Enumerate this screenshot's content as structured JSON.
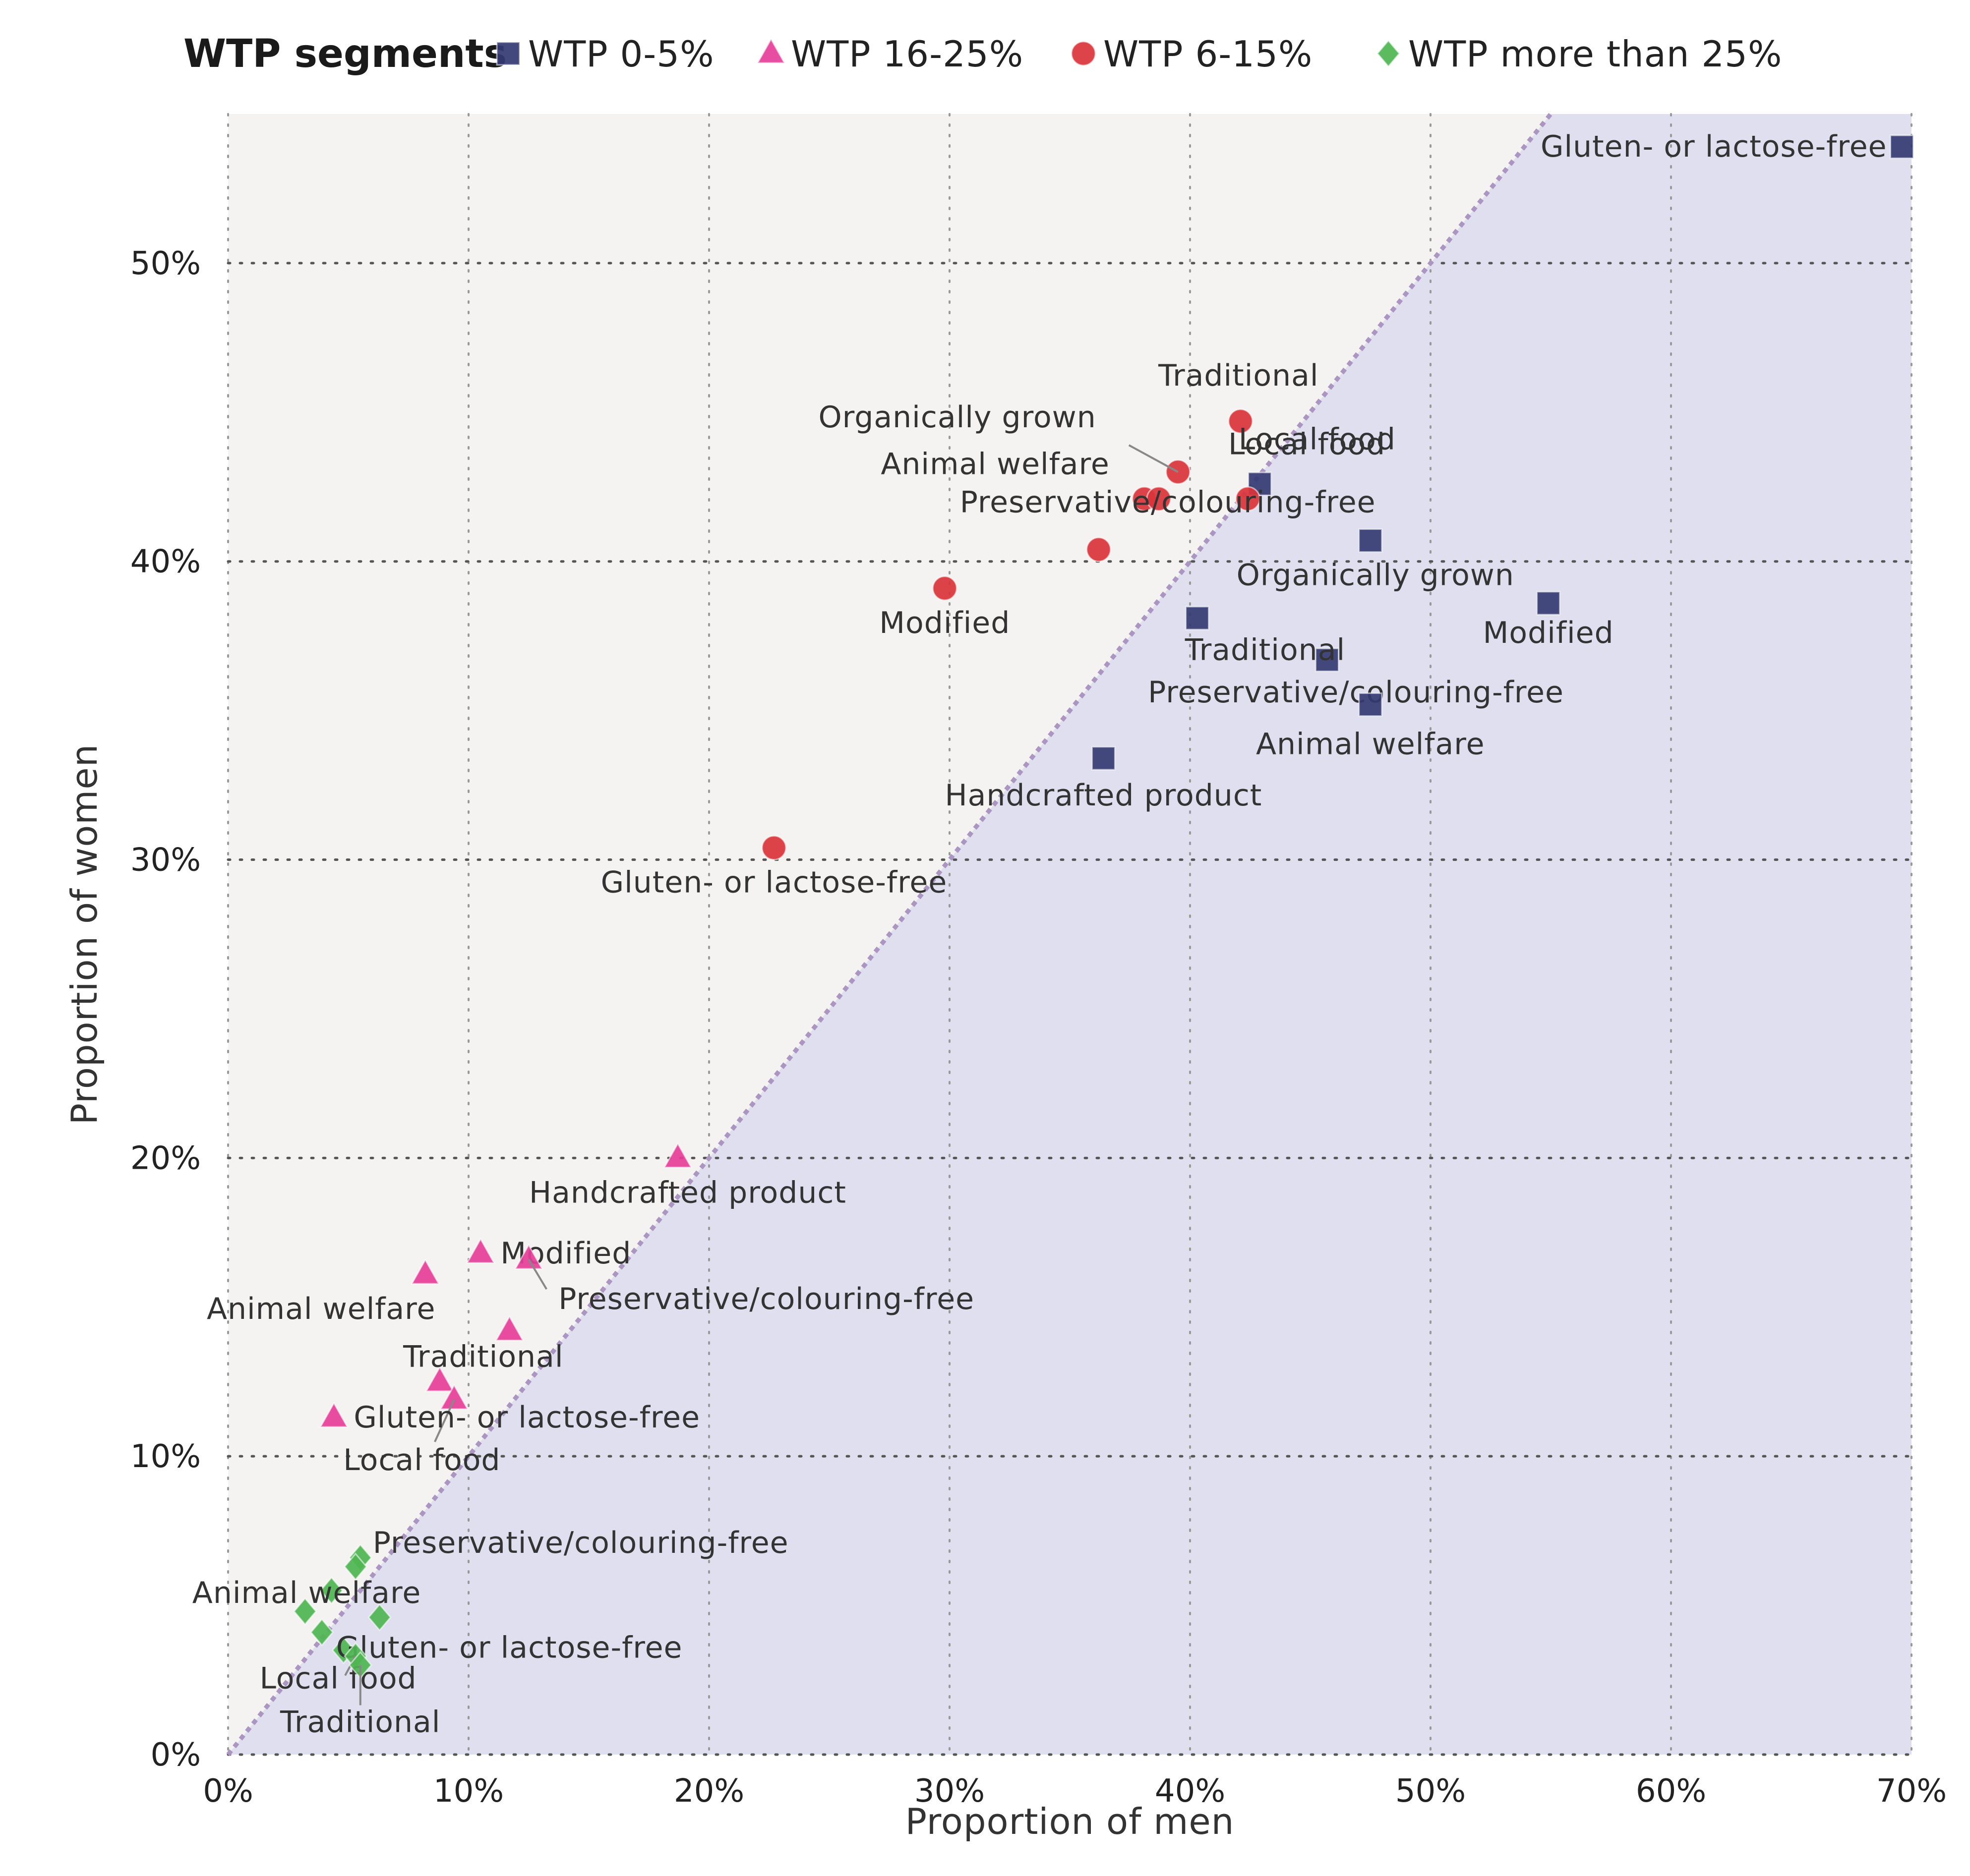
{
  "chart_data": {
    "type": "scatter",
    "title": "",
    "xlabel": "Proportion of men",
    "ylabel": "Proportion of women",
    "xlim": [
      0,
      70
    ],
    "ylim": [
      0,
      55
    ],
    "x_ticks": [
      0,
      10,
      20,
      30,
      40,
      50,
      60,
      70
    ],
    "y_ticks": [
      0,
      10,
      20,
      30,
      40,
      50
    ],
    "x_tick_labels": [
      "0%",
      "10%",
      "20%",
      "30%",
      "40%",
      "50%",
      "60%",
      "70%"
    ],
    "y_tick_labels": [
      "0%",
      "10%",
      "20%",
      "30%",
      "40%",
      "50%"
    ],
    "grid": true,
    "reference_line": "y = x (dotted diagonal); region below diagonal shaded",
    "legend": {
      "title": "WTP segments",
      "placement": "top"
    },
    "colors": {
      "plot_background": "#f4f3f2",
      "shaded_region": "#dfdff0",
      "diagonal": "#ab96c2",
      "grid": "#555555"
    },
    "series": [
      {
        "name": "WTP 0-5%",
        "marker": "square",
        "color": "#343a72",
        "points": [
          {
            "label": "Gluten- or lactose-free",
            "x": 69.6,
            "y": 53.9
          },
          {
            "label": "Modified",
            "x": 54.9,
            "y": 38.6
          },
          {
            "label": "Local food",
            "x": 42.9,
            "y": 42.6
          },
          {
            "label": "Organically grown",
            "x": 47.5,
            "y": 40.7
          },
          {
            "label": "Traditional",
            "x": 45.7,
            "y": 36.7
          },
          {
            "label": "Preservative/colouring-free",
            "x": 40.3,
            "y": 38.1
          },
          {
            "label": "Animal welfare",
            "x": 47.5,
            "y": 35.2
          },
          {
            "label": "Handcrafted product",
            "x": 36.4,
            "y": 33.4
          }
        ]
      },
      {
        "name": "WTP 16-25%",
        "marker": "triangle",
        "color": "#e53e98",
        "points": [
          {
            "label": "Handcrafted product",
            "x": 18.7,
            "y": 20.0
          },
          {
            "label": "Modified",
            "x": 10.5,
            "y": 16.8
          },
          {
            "label": "Preservative/colouring-free",
            "x": 12.5,
            "y": 16.6
          },
          {
            "label": "Animal welfare",
            "x": 8.2,
            "y": 16.1
          },
          {
            "label": "",
            "x": 11.7,
            "y": 14.2
          },
          {
            "label": "Traditional",
            "x": 8.8,
            "y": 12.5
          },
          {
            "label": "Local food",
            "x": 9.4,
            "y": 11.9
          },
          {
            "label": "Gluten- or lactose-free",
            "x": 4.4,
            "y": 11.3
          }
        ]
      },
      {
        "name": "WTP 6-15%",
        "marker": "circle",
        "color": "#d9343a",
        "points": [
          {
            "label": "Traditional",
            "x": 42.1,
            "y": 44.7
          },
          {
            "label": "Organically grown",
            "x": 39.5,
            "y": 43.0
          },
          {
            "label": "Local food",
            "x": 42.4,
            "y": 42.1
          },
          {
            "label": "Animal welfare",
            "x": 38.1,
            "y": 42.1
          },
          {
            "label": "",
            "x": 38.7,
            "y": 42.1
          },
          {
            "label": "Preservative/colouring-free",
            "x": 36.2,
            "y": 40.4
          },
          {
            "label": "Modified",
            "x": 29.8,
            "y": 39.1
          },
          {
            "label": "Gluten- or lactose-free",
            "x": 22.7,
            "y": 30.4
          }
        ]
      },
      {
        "name": "WTP more than 25%",
        "marker": "diamond",
        "color": "#4eb551",
        "points": [
          {
            "label": "Preservative/colouring-free",
            "x": 5.5,
            "y": 6.6
          },
          {
            "label": "",
            "x": 5.3,
            "y": 6.3
          },
          {
            "label": "Animal welfare",
            "x": 4.3,
            "y": 5.5
          },
          {
            "label": "",
            "x": 3.2,
            "y": 4.8
          },
          {
            "label": "",
            "x": 6.3,
            "y": 4.6
          },
          {
            "label": "",
            "x": 3.9,
            "y": 4.1
          },
          {
            "label": "Gluten- or lactose-free",
            "x": 4.8,
            "y": 3.5
          },
          {
            "label": "Local food",
            "x": 5.3,
            "y": 3.3
          },
          {
            "label": "Traditional",
            "x": 5.5,
            "y": 3.0
          }
        ]
      }
    ]
  }
}
